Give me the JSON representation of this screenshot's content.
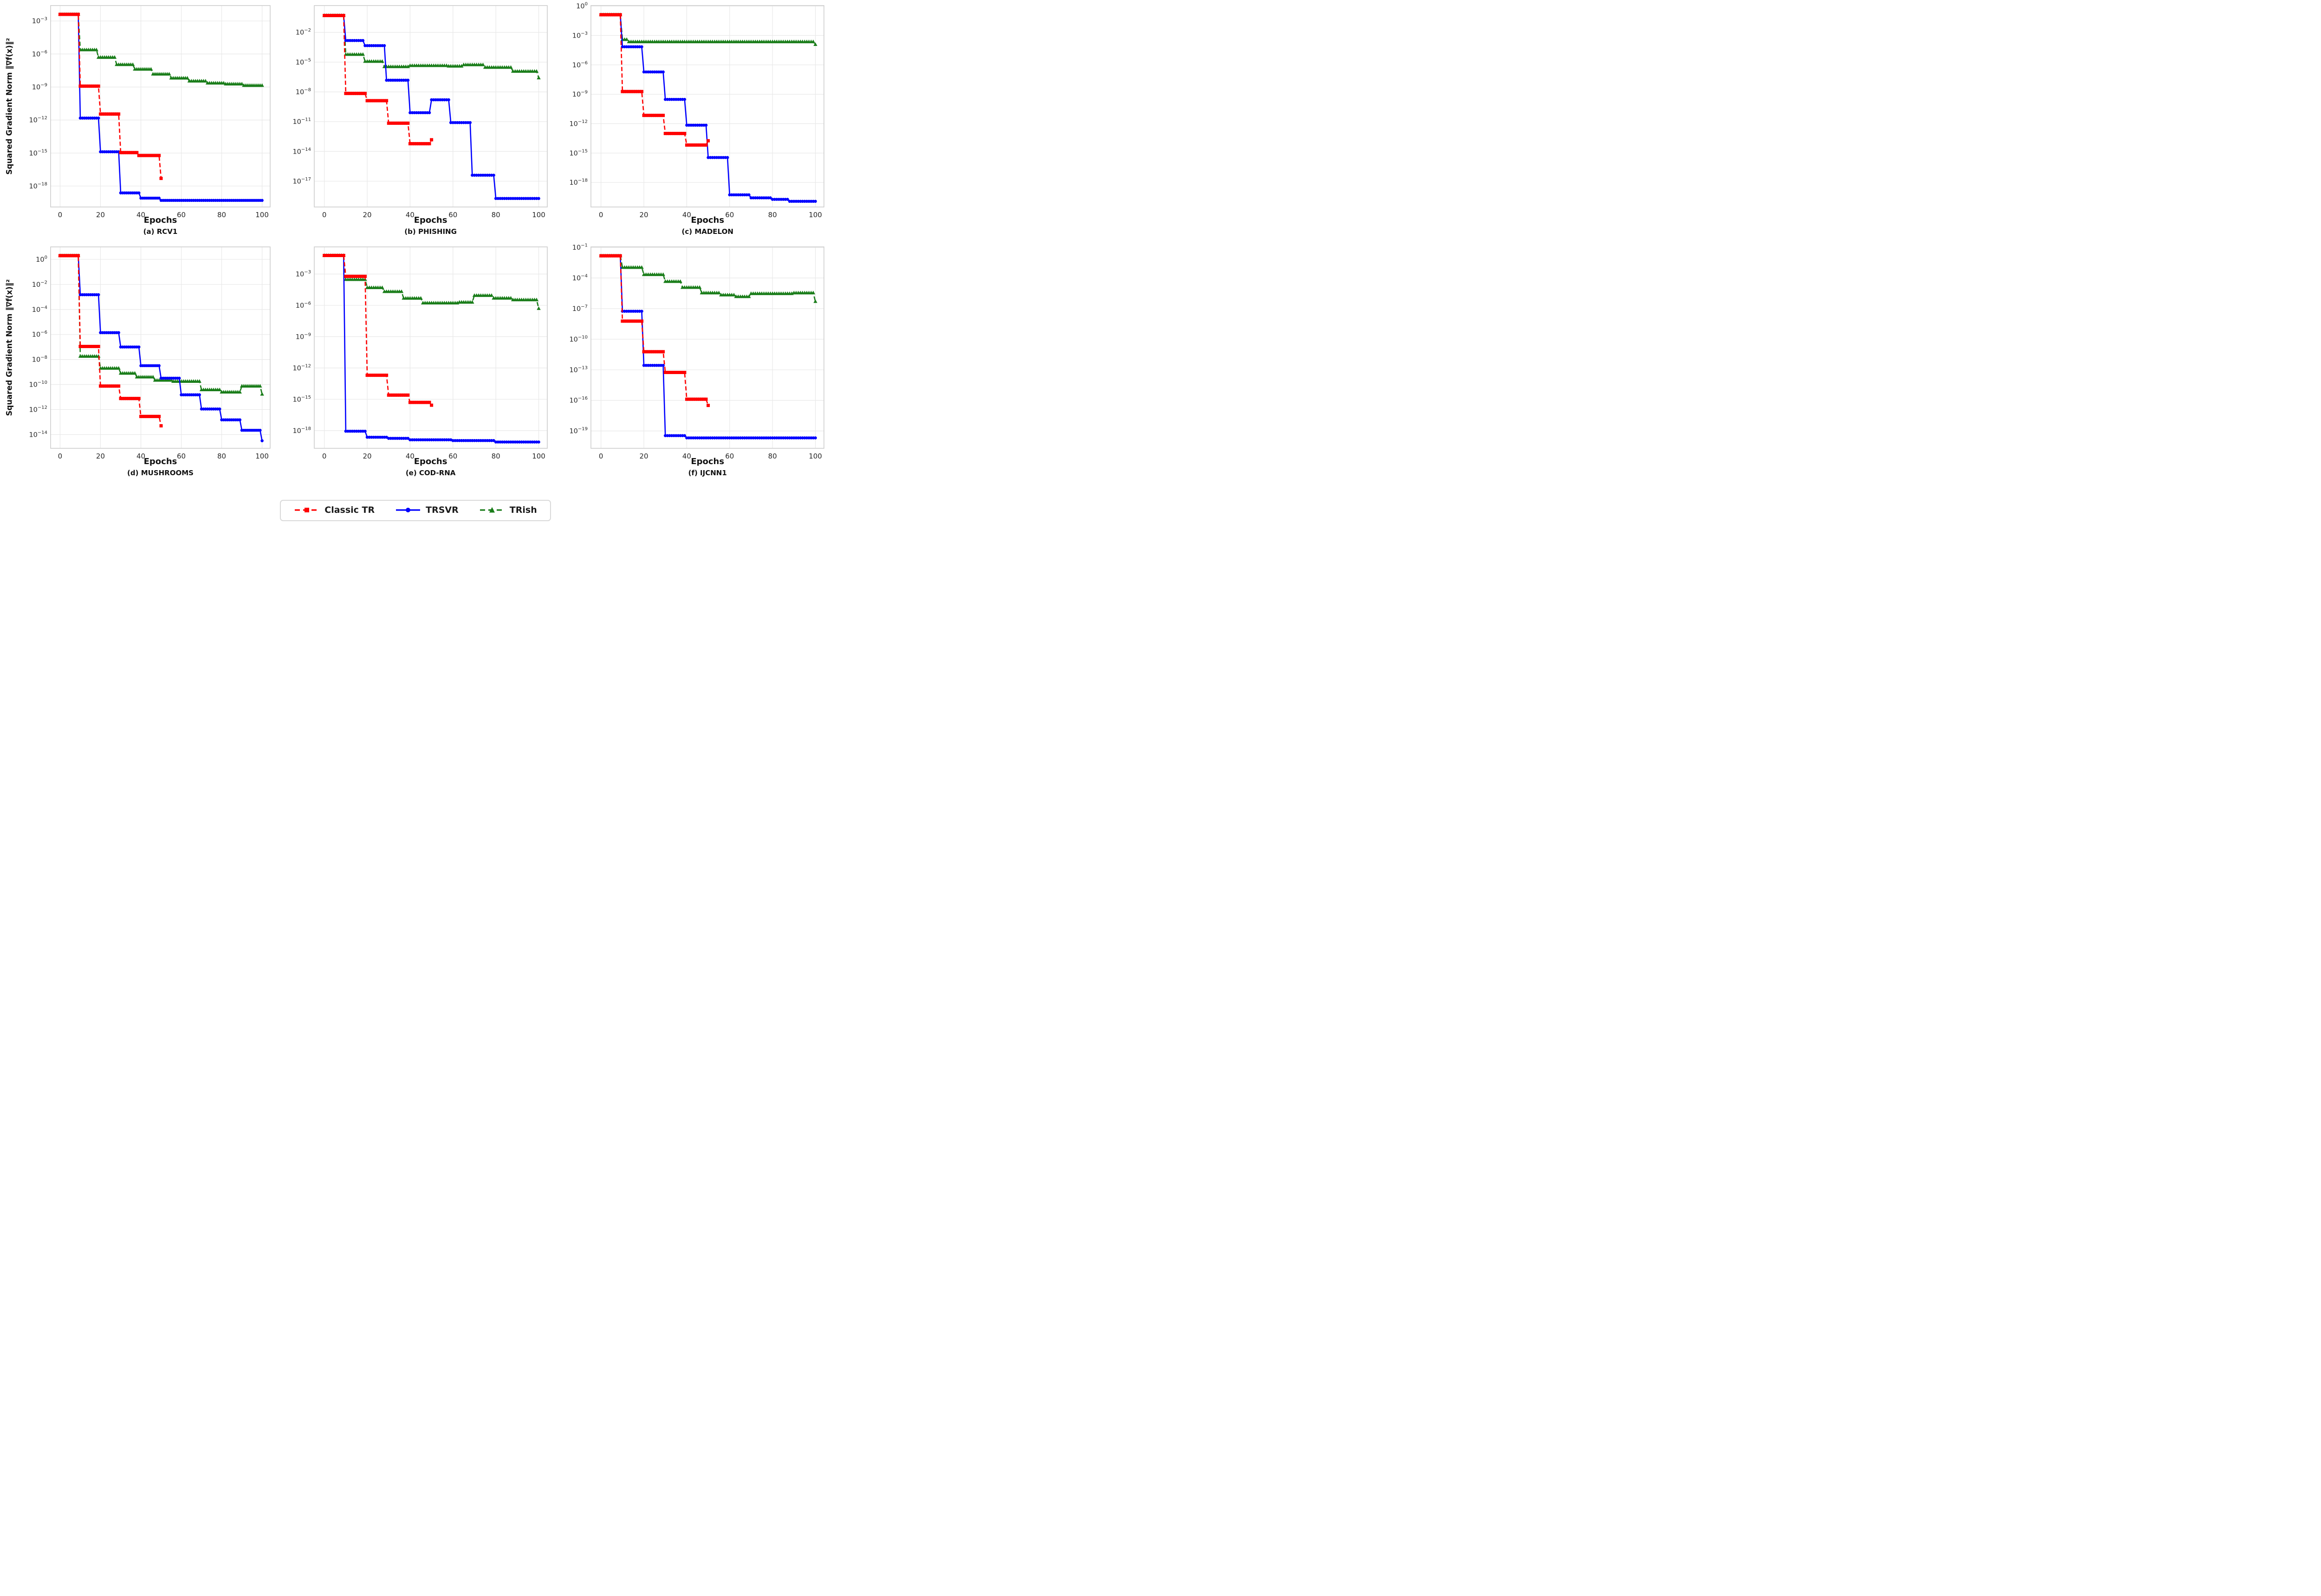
{
  "figure": {
    "ylabel": "Squared Gradient Norm ‖∇f(x)‖²",
    "background": "#ffffff",
    "grid_color": "#e8e8e8",
    "spine_color": "#cdcdcd"
  },
  "legend": {
    "items": [
      {
        "label": "Classic TR",
        "color": "#ff0000",
        "marker": "square",
        "linestyle": "dashed"
      },
      {
        "label": "TRSVR",
        "color": "#0000ff",
        "marker": "circle",
        "linestyle": "solid"
      },
      {
        "label": "TRish",
        "color": "#1a7d1a",
        "marker": "triangle",
        "linestyle": "dashed"
      }
    ]
  },
  "chart_data": [
    {
      "type": "line",
      "title": "(a) RCV1",
      "xlabel": "Epochs",
      "show_ylabel": true,
      "xticks": [
        0,
        20,
        40,
        60,
        80,
        100
      ],
      "xlim": [
        -4.7,
        104
      ],
      "ylog": true,
      "yticks_exp": [
        -3,
        -6,
        -9,
        -12,
        -15,
        -18
      ],
      "ylim_exp": [
        -1.6,
        -19.9
      ],
      "series": [
        {
          "name": "TRish",
          "color": "#1a7d1a",
          "marker": "triangle",
          "linestyle": "dashed",
          "end": 100,
          "steps": [
            [
              0,
              0.004
            ],
            [
              10,
              2.4e-06
            ],
            [
              19,
              5e-07
            ],
            [
              28,
              1.1e-07
            ],
            [
              37,
              4.2e-08
            ],
            [
              46,
              1.5e-08
            ],
            [
              55,
              6.5e-09
            ],
            [
              64,
              3.5e-09
            ],
            [
              73,
              2.3e-09
            ],
            [
              82,
              1.9e-09
            ],
            [
              91,
              1.4e-09
            ]
          ]
        },
        {
          "name": "TRSVR",
          "color": "#0000ff",
          "marker": "circle",
          "linestyle": "solid",
          "end": 100,
          "steps": [
            [
              0,
              0.004
            ],
            [
              10,
              1.5e-12
            ],
            [
              20,
              1.3e-15
            ],
            [
              30,
              2.4e-19
            ],
            [
              40,
              8e-20
            ],
            [
              50,
              5e-20
            ]
          ]
        },
        {
          "name": "Classic TR",
          "color": "#ff0000",
          "marker": "square",
          "linestyle": "dashed",
          "end": 50,
          "steps": [
            [
              0,
              0.004
            ],
            [
              10,
              1.2e-09
            ],
            [
              20,
              3.5e-12
            ],
            [
              30,
              1.1e-15
            ],
            [
              39,
              6e-16
            ],
            [
              50,
              5e-18
            ]
          ]
        }
      ]
    },
    {
      "type": "line",
      "title": "(b) PHISHING",
      "xlabel": "Epochs",
      "show_ylabel": false,
      "xticks": [
        0,
        20,
        40,
        60,
        80,
        100
      ],
      "xlim": [
        -4.7,
        104
      ],
      "ylog": true,
      "yticks_exp": [
        -2,
        -5,
        -8,
        -11,
        -14,
        -17
      ],
      "ylim_exp": [
        0.7,
        -19.6
      ],
      "series": [
        {
          "name": "TRish",
          "color": "#1a7d1a",
          "marker": "triangle",
          "linestyle": "dashed",
          "end": 100,
          "steps": [
            [
              0,
              0.5
            ],
            [
              10,
              6e-05
            ],
            [
              19,
              1.2e-05
            ],
            [
              28,
              3.5e-06
            ],
            [
              40,
              4.5e-06
            ],
            [
              58,
              4e-06
            ],
            [
              65,
              5.5e-06
            ],
            [
              75,
              3e-06
            ],
            [
              88,
              1.2e-06
            ],
            [
              100,
              2.6e-07
            ]
          ]
        },
        {
          "name": "TRSVR",
          "color": "#0000ff",
          "marker": "circle",
          "linestyle": "solid",
          "end": 100,
          "steps": [
            [
              0,
              0.5
            ],
            [
              10,
              0.0015
            ],
            [
              19,
              0.00046
            ],
            [
              29,
              1.5e-07
            ],
            [
              40,
              8e-11
            ],
            [
              50,
              1.6e-09
            ],
            [
              59,
              8e-12
            ],
            [
              69,
              4e-17
            ],
            [
              80,
              1.8e-19
            ]
          ]
        },
        {
          "name": "Classic TR",
          "color": "#ff0000",
          "marker": "square",
          "linestyle": "dashed",
          "end": 50,
          "steps": [
            [
              0,
              0.5
            ],
            [
              10,
              7e-09
            ],
            [
              20,
              1.3e-09
            ],
            [
              30,
              7e-12
            ],
            [
              40,
              6e-14
            ],
            [
              50,
              1.5e-13
            ]
          ]
        }
      ]
    },
    {
      "type": "line",
      "title": "(c) MADELON",
      "xlabel": "Epochs",
      "show_ylabel": false,
      "xticks": [
        0,
        20,
        40,
        60,
        80,
        100
      ],
      "xlim": [
        -4.7,
        104
      ],
      "ylog": true,
      "yticks_exp": [
        0,
        -3,
        -6,
        -9,
        -12,
        -15,
        -18
      ],
      "ylim_exp": [
        0.05,
        -20.5
      ],
      "series": [
        {
          "name": "TRish",
          "color": "#1a7d1a",
          "marker": "triangle",
          "linestyle": "dashed",
          "end": 100,
          "steps": [
            [
              0,
              0.13
            ],
            [
              10,
              0.00039
            ],
            [
              13,
              0.00023
            ],
            [
              100,
              0.00012
            ]
          ]
        },
        {
          "name": "TRSVR",
          "color": "#0000ff",
          "marker": "circle",
          "linestyle": "solid",
          "end": 100,
          "steps": [
            [
              0,
              0.13
            ],
            [
              10,
              7e-05
            ],
            [
              20,
              1.9e-07
            ],
            [
              30,
              3e-10
            ],
            [
              40,
              7e-13
            ],
            [
              50,
              3.5e-16
            ],
            [
              60,
              5.5e-20
            ],
            [
              70,
              2.7e-20
            ],
            [
              80,
              1.9e-20
            ],
            [
              88,
              1.2e-20
            ]
          ]
        },
        {
          "name": "Classic TR",
          "color": "#ff0000",
          "marker": "square",
          "linestyle": "dashed",
          "end": 50,
          "steps": [
            [
              0,
              0.13
            ],
            [
              10,
              1.9e-09
            ],
            [
              20,
              7e-12
            ],
            [
              30,
              1e-13
            ],
            [
              40,
              6.6e-15
            ],
            [
              50,
              1.8e-14
            ]
          ]
        }
      ]
    },
    {
      "type": "line",
      "title": "(d) MUSHROOMS",
      "xlabel": "Epochs",
      "show_ylabel": true,
      "xticks": [
        0,
        20,
        40,
        60,
        80,
        100
      ],
      "xlim": [
        -4.7,
        104
      ],
      "ylog": true,
      "yticks_exp": [
        0,
        -2,
        -4,
        -6,
        -8,
        -10,
        -12,
        -14
      ],
      "ylim_exp": [
        1.0,
        -15.1
      ],
      "series": [
        {
          "name": "TRish",
          "color": "#1a7d1a",
          "marker": "triangle",
          "linestyle": "dashed",
          "end": 100,
          "steps": [
            [
              0,
              2
            ],
            [
              10,
              1.8e-08
            ],
            [
              20,
              2e-09
            ],
            [
              30,
              8e-10
            ],
            [
              38,
              4e-10
            ],
            [
              47,
              2.2e-10
            ],
            [
              56,
              1.8e-10
            ],
            [
              70,
              3.8e-11
            ],
            [
              80,
              2.5e-11
            ],
            [
              90,
              7.5e-11
            ],
            [
              100,
              1.7e-11
            ]
          ]
        },
        {
          "name": "TRSVR",
          "color": "#0000ff",
          "marker": "circle",
          "linestyle": "solid",
          "end": 100,
          "steps": [
            [
              0,
              2
            ],
            [
              10,
              0.0015
            ],
            [
              20,
              1.4e-06
            ],
            [
              30,
              1e-07
            ],
            [
              40,
              3.2e-09
            ],
            [
              50,
              3.2e-10
            ],
            [
              60,
              1.5e-11
            ],
            [
              70,
              1.1e-12
            ],
            [
              80,
              1.5e-13
            ],
            [
              90,
              2.2e-14
            ],
            [
              100,
              3.2e-15
            ]
          ]
        },
        {
          "name": "Classic TR",
          "color": "#ff0000",
          "marker": "square",
          "linestyle": "dashed",
          "end": 50,
          "steps": [
            [
              0,
              2
            ],
            [
              10,
              1.1e-07
            ],
            [
              20,
              7.5e-11
            ],
            [
              30,
              7.6e-12
            ],
            [
              40,
              2.8e-13
            ],
            [
              50,
              5e-14
            ]
          ]
        }
      ]
    },
    {
      "type": "line",
      "title": "(e) COD-RNA",
      "xlabel": "Epochs",
      "show_ylabel": false,
      "xticks": [
        0,
        20,
        40,
        60,
        80,
        100
      ],
      "xlim": [
        -4.7,
        104
      ],
      "ylog": true,
      "yticks_exp": [
        -3,
        -6,
        -9,
        -12,
        -15,
        -18
      ],
      "ylim_exp": [
        -0.4,
        -19.7
      ],
      "series": [
        {
          "name": "TRish",
          "color": "#1a7d1a",
          "marker": "triangle",
          "linestyle": "dashed",
          "end": 100,
          "steps": [
            [
              0,
              0.06
            ],
            [
              10,
              0.0003
            ],
            [
              20,
              5e-05
            ],
            [
              28,
              2.1e-05
            ],
            [
              37,
              4.8e-06
            ],
            [
              46,
              1.7e-06
            ],
            [
              63,
              2e-06
            ],
            [
              70,
              8.9e-06
            ],
            [
              79,
              4.9e-06
            ],
            [
              88,
              3.4e-06
            ],
            [
              100,
              5e-07
            ]
          ]
        },
        {
          "name": "TRSVR",
          "color": "#0000ff",
          "marker": "circle",
          "linestyle": "solid",
          "end": 100,
          "steps": [
            [
              0,
              0.06
            ],
            [
              10,
              8.7e-19
            ],
            [
              20,
              2.3e-19
            ],
            [
              30,
              1.8e-19
            ],
            [
              40,
              1.3e-19
            ],
            [
              60,
              1.1e-19
            ],
            [
              80,
              8e-20
            ]
          ]
        },
        {
          "name": "Classic TR",
          "color": "#ff0000",
          "marker": "square",
          "linestyle": "dashed",
          "end": 50,
          "steps": [
            [
              0,
              0.06
            ],
            [
              10,
              0.0006
            ],
            [
              20,
              2e-13
            ],
            [
              30,
              2.5e-15
            ],
            [
              40,
              5e-16
            ],
            [
              50,
              2.7e-16
            ]
          ]
        }
      ]
    },
    {
      "type": "line",
      "title": "(f) IJCNN1",
      "xlabel": "Epochs",
      "show_ylabel": false,
      "xticks": [
        0,
        20,
        40,
        60,
        80,
        100
      ],
      "xlim": [
        -4.7,
        104
      ],
      "ylog": true,
      "yticks_exp": [
        -1,
        -4,
        -7,
        -10,
        -13,
        -16,
        -19
      ],
      "ylim_exp": [
        -0.95,
        -20.7
      ],
      "series": [
        {
          "name": "TRish",
          "color": "#1a7d1a",
          "marker": "triangle",
          "linestyle": "dashed",
          "end": 100,
          "steps": [
            [
              0,
              0.015
            ],
            [
              10,
              0.0011
            ],
            [
              20,
              0.00022
            ],
            [
              30,
              4.6e-05
            ],
            [
              38,
              1.2e-05
            ],
            [
              47,
              3.5e-06
            ],
            [
              56,
              2.2e-06
            ],
            [
              63,
              1.5e-06
            ],
            [
              70,
              3e-06
            ],
            [
              90,
              3.5e-06
            ],
            [
              100,
              5e-07
            ]
          ]
        },
        {
          "name": "TRSVR",
          "color": "#0000ff",
          "marker": "circle",
          "linestyle": "solid",
          "end": 100,
          "steps": [
            [
              0,
              0.015
            ],
            [
              10,
              5.5e-08
            ],
            [
              20,
              2.7e-13
            ],
            [
              30,
              3.5e-20
            ],
            [
              40,
              2.1e-20
            ]
          ]
        },
        {
          "name": "Classic TR",
          "color": "#ff0000",
          "marker": "square",
          "linestyle": "dashed",
          "end": 50,
          "steps": [
            [
              0,
              0.015
            ],
            [
              10,
              5.9e-09
            ],
            [
              20,
              5.9e-12
            ],
            [
              30,
              5.5e-14
            ],
            [
              40,
              1.3e-16
            ],
            [
              50,
              3.2e-17
            ]
          ]
        }
      ]
    }
  ]
}
